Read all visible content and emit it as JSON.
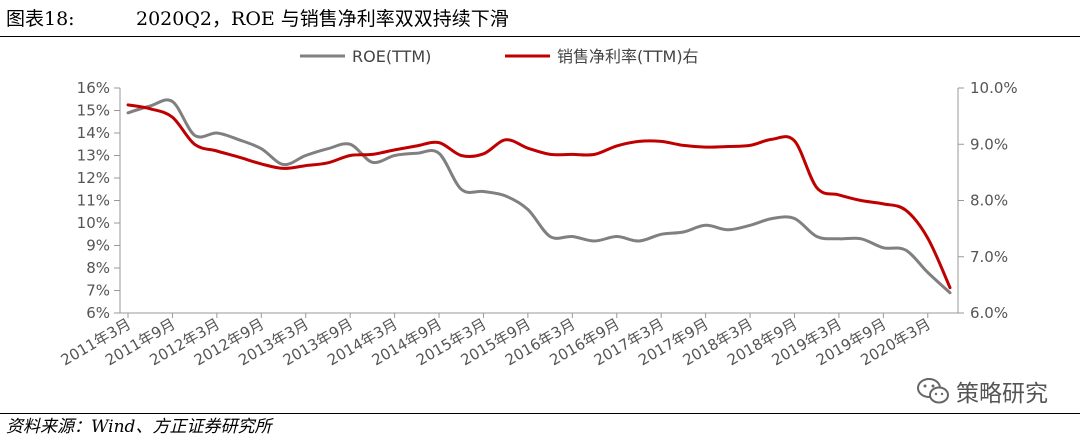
{
  "figure": {
    "number": "图表18:",
    "title": "2020Q2，ROE 与销售净利率双双持续下滑",
    "source": "资料来源：Wind、方正证券研究所",
    "watermark": "策略研究",
    "watermark_icon": "wechat-icon"
  },
  "chart_data": {
    "type": "line",
    "title": "2020Q2，ROE 与销售净利率双双持续下滑",
    "x": [
      "2011年3月",
      "2011年6月",
      "2011年9月",
      "2011年12月",
      "2012年3月",
      "2012年6月",
      "2012年9月",
      "2012年12月",
      "2013年3月",
      "2013年6月",
      "2013年9月",
      "2013年12月",
      "2014年3月",
      "2014年6月",
      "2014年9月",
      "2014年12月",
      "2015年3月",
      "2015年6月",
      "2015年9月",
      "2015年12月",
      "2016年3月",
      "2016年6月",
      "2016年9月",
      "2016年12月",
      "2017年3月",
      "2017年6月",
      "2017年9月",
      "2017年12月",
      "2018年3月",
      "2018年6月",
      "2018年9月",
      "2018年12月",
      "2019年3月",
      "2019年6月",
      "2019年9月",
      "2019年12月",
      "2020年3月",
      "2020年6月"
    ],
    "x_tick_labels": [
      "2011年3月",
      "2011年9月",
      "2012年3月",
      "2012年9月",
      "2013年3月",
      "2013年9月",
      "2014年3月",
      "2014年9月",
      "2015年3月",
      "2015年9月",
      "2016年3月",
      "2016年9月",
      "2017年3月",
      "2017年9月",
      "2018年3月",
      "2018年9月",
      "2019年3月",
      "2019年9月",
      "2020年3月"
    ],
    "series": [
      {
        "name": "ROE(TTM)",
        "axis": "left",
        "color": "#808080",
        "values": [
          14.9,
          15.2,
          15.4,
          13.9,
          14.0,
          13.7,
          13.3,
          12.6,
          13.0,
          13.3,
          13.5,
          12.7,
          13.0,
          13.1,
          13.1,
          11.5,
          11.4,
          11.2,
          10.6,
          9.4,
          9.4,
          9.2,
          9.4,
          9.2,
          9.5,
          9.6,
          9.9,
          9.7,
          9.9,
          10.2,
          10.2,
          9.4,
          9.3,
          9.3,
          8.9,
          8.8,
          7.8,
          6.9
        ]
      },
      {
        "name": "销售净利率(TTM)右",
        "axis": "right",
        "color": "#c00000",
        "values": [
          9.7,
          9.63,
          9.48,
          9.0,
          8.88,
          8.77,
          8.65,
          8.57,
          8.62,
          8.67,
          8.8,
          8.82,
          8.9,
          8.97,
          9.03,
          8.8,
          8.83,
          9.08,
          8.93,
          8.82,
          8.82,
          8.82,
          8.97,
          9.05,
          9.05,
          8.98,
          8.95,
          8.96,
          8.98,
          9.09,
          9.06,
          8.23,
          8.1,
          8.0,
          7.94,
          7.83,
          7.33,
          6.45
        ]
      }
    ],
    "left_axis": {
      "ylim": [
        6,
        16
      ],
      "step": 1,
      "tick_labels": [
        "6%",
        "7%",
        "8%",
        "9%",
        "10%",
        "11%",
        "12%",
        "13%",
        "14%",
        "15%",
        "16%"
      ]
    },
    "right_axis": {
      "ylim": [
        6.0,
        10.0
      ],
      "step": 1.0,
      "tick_labels": [
        "6.0%",
        "7.0%",
        "8.0%",
        "9.0%",
        "10.0%"
      ]
    },
    "grid": false,
    "legend": "top-center"
  }
}
